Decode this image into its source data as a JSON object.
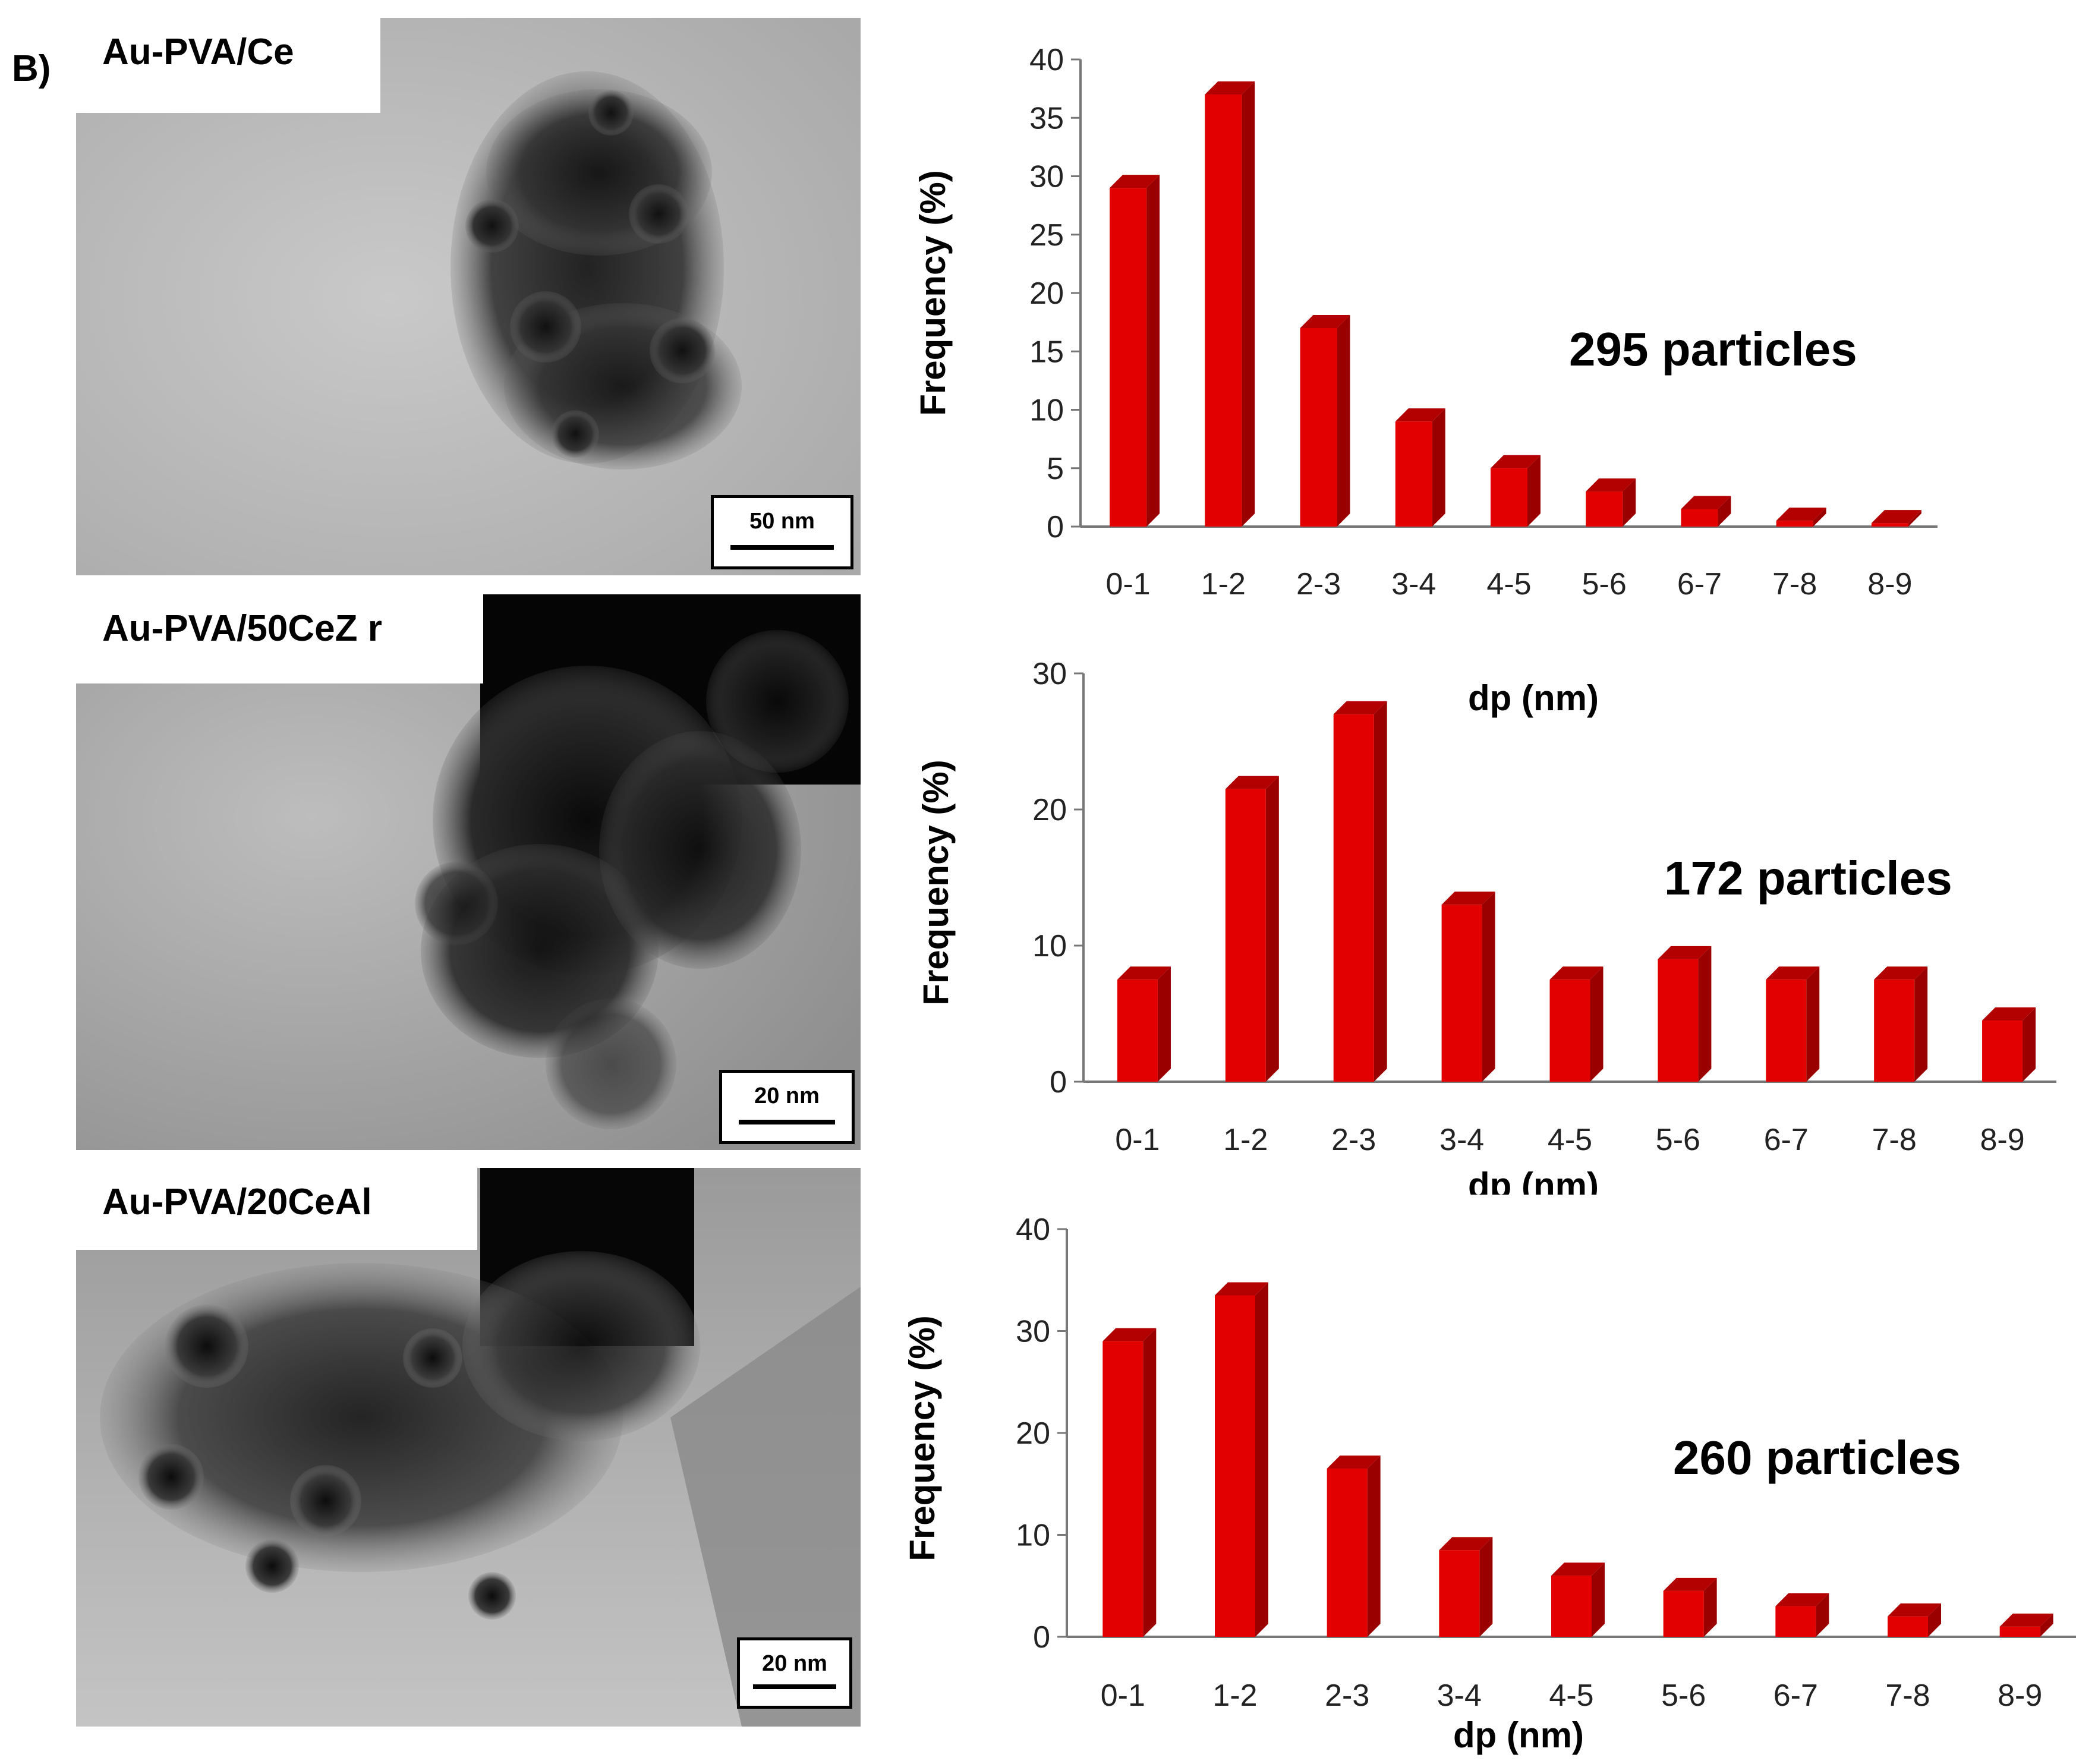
{
  "panel_letter": "B)",
  "micrographs": [
    {
      "label": "Au-PVA/Ce",
      "scale": "50 nm"
    },
    {
      "label": "Au-PVA/50CeZ r",
      "scale": "20 nm"
    },
    {
      "label": "Au-PVA/20CeAl",
      "scale": "20 nm"
    }
  ],
  "colors": {
    "bar_front": "#e20000",
    "bar_side": "#9a0000",
    "bar_top": "#b30000"
  },
  "chart_data": [
    {
      "type": "bar",
      "categories": [
        "0-1",
        "1-2",
        "2-3",
        "3-4",
        "4-5",
        "5-6",
        "6-7",
        "7-8",
        "8-9"
      ],
      "values": [
        29,
        37,
        17,
        9,
        5,
        3,
        1.5,
        0.5,
        0.3
      ],
      "ylim": [
        0,
        40
      ],
      "yticks": [
        "0",
        "5",
        "10",
        "15",
        "20",
        "25",
        "30",
        "35",
        "40"
      ],
      "ylabel": "Frequency (%)",
      "xlabel": "dp (nm)",
      "annotation": "295 particles"
    },
    {
      "type": "bar",
      "categories": [
        "0-1",
        "1-2",
        "2-3",
        "3-4",
        "4-5",
        "5-6",
        "6-7",
        "7-8",
        "8-9"
      ],
      "values": [
        7.5,
        21.5,
        27,
        13,
        7.5,
        9,
        7.5,
        7.5,
        4.5
      ],
      "ylim": [
        0,
        30
      ],
      "yticks": [
        "0",
        "10",
        "20",
        "30"
      ],
      "ylabel": "Frequency (%)",
      "xlabel": "dp (nm)",
      "annotation": "172 particles"
    },
    {
      "type": "bar",
      "categories": [
        "0-1",
        "1-2",
        "2-3",
        "3-4",
        "4-5",
        "5-6",
        "6-7",
        "7-8",
        "8-9"
      ],
      "values": [
        29,
        33.5,
        16.5,
        8.5,
        6,
        4.5,
        3,
        2,
        1
      ],
      "ylim": [
        0,
        40
      ],
      "yticks": [
        "0",
        "10",
        "20",
        "30",
        "40"
      ],
      "ylabel": "Frequency (%)",
      "xlabel": "dp (nm)",
      "annotation": "260 particles"
    }
  ]
}
